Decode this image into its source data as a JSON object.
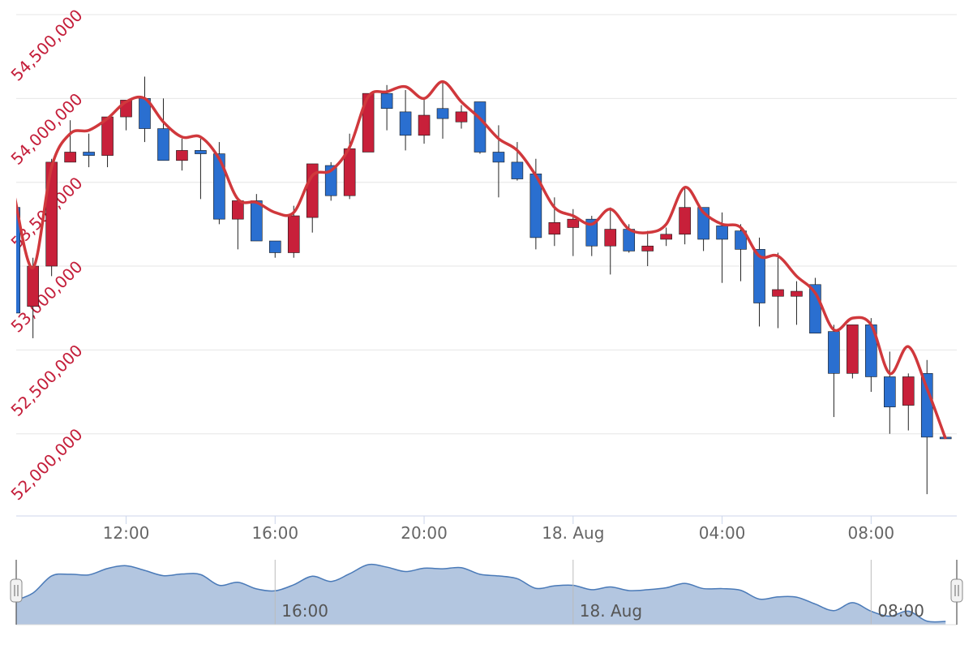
{
  "chart_data": {
    "type": "candlestick",
    "x": [
      9,
      9.5,
      10,
      10.5,
      11,
      11.5,
      12,
      12.5,
      13,
      13.5,
      14,
      14.5,
      15,
      15.5,
      16,
      16.5,
      17,
      17.5,
      18,
      18.5,
      19,
      19.5,
      20,
      20.5,
      21,
      21.5,
      22,
      22.5,
      23,
      23.5,
      24,
      24.5,
      25,
      25.5,
      26,
      26.5,
      27,
      27.5,
      28,
      28.5,
      29,
      29.5,
      30,
      30.5,
      31,
      31.5,
      32,
      32.5,
      33,
      33.5,
      34
    ],
    "xlim": [
      9.05,
      34.3
    ],
    "xticks": [
      {
        "value": 12,
        "label": "12:00"
      },
      {
        "value": 16,
        "label": "16:00"
      },
      {
        "value": 20,
        "label": "20:00"
      },
      {
        "value": 24,
        "label": "18. Aug"
      },
      {
        "value": 28,
        "label": "04:00"
      },
      {
        "value": 32,
        "label": "08:00"
      }
    ],
    "ylim": [
      51510000,
      54500000
    ],
    "yticks": [
      {
        "value": 52000000,
        "label": "52,000,000"
      },
      {
        "value": 52500000,
        "label": "52,500,000"
      },
      {
        "value": 53000000,
        "label": "53,000,000"
      },
      {
        "value": 53500000,
        "label": "53,500,000"
      },
      {
        "value": 54000000,
        "label": "54,000,000"
      },
      {
        "value": 54500000,
        "label": "54,500,000"
      }
    ],
    "grid": true,
    "series": [
      {
        "type": "candlestick",
        "up_color": "#c8203a",
        "down_color": "#2a6fd0",
        "open": [
          53350000,
          52760000,
          53000000,
          53620000,
          53680000,
          53660000,
          53890000,
          54000000,
          53820000,
          53630000,
          53690000,
          53670000,
          53280000,
          53390000,
          53150000,
          53080000,
          53290000,
          53600000,
          53420000,
          53680000,
          54030000,
          53920000,
          53780000,
          53940000,
          53860000,
          53980000,
          53680000,
          53620000,
          53550000,
          53190000,
          53230000,
          53280000,
          53120000,
          53220000,
          53090000,
          53160000,
          53190000,
          53350000,
          53240000,
          53210000,
          53100000,
          52820000,
          52820000,
          52890000,
          52610000,
          52360000,
          52650000,
          52340000,
          52170000,
          52360000,
          51980000
        ],
        "high": [
          53370000,
          53050000,
          53640000,
          53870000,
          53790000,
          53890000,
          53990000,
          54130000,
          54000000,
          53760000,
          53760000,
          53740000,
          53390000,
          53430000,
          53150000,
          53360000,
          53610000,
          53620000,
          53790000,
          54030000,
          54080000,
          54050000,
          54000000,
          54100000,
          53960000,
          53980000,
          53840000,
          53740000,
          53640000,
          53410000,
          53340000,
          53300000,
          53350000,
          53250000,
          53210000,
          53230000,
          53470000,
          53350000,
          53320000,
          53250000,
          53170000,
          53080000,
          52910000,
          52930000,
          52650000,
          52650000,
          52690000,
          52490000,
          52360000,
          52440000,
          51990000
        ],
        "low": [
          52690000,
          52570000,
          52940000,
          53620000,
          53590000,
          53590000,
          53810000,
          53740000,
          53630000,
          53570000,
          53400000,
          53250000,
          53100000,
          53150000,
          53050000,
          53050000,
          53200000,
          53390000,
          53400000,
          53680000,
          53810000,
          53690000,
          53730000,
          53760000,
          53820000,
          53670000,
          53410000,
          53510000,
          53100000,
          53120000,
          53060000,
          53060000,
          52950000,
          53080000,
          53000000,
          53120000,
          53130000,
          53090000,
          52900000,
          52910000,
          52640000,
          52630000,
          52650000,
          52600000,
          52100000,
          52330000,
          52250000,
          52000000,
          52020000,
          51640000,
          51970000
        ],
        "close": [
          52720000,
          53000000,
          53620000,
          53680000,
          53660000,
          53890000,
          53990000,
          53820000,
          53630000,
          53690000,
          53670000,
          53280000,
          53390000,
          53150000,
          53080000,
          53300000,
          53610000,
          53420000,
          53700000,
          54030000,
          53940000,
          53780000,
          53900000,
          53880000,
          53920000,
          53680000,
          53620000,
          53520000,
          53170000,
          53260000,
          53280000,
          53120000,
          53220000,
          53090000,
          53120000,
          53190000,
          53350000,
          53160000,
          53160000,
          53100000,
          52780000,
          52860000,
          52850000,
          52600000,
          52360000,
          52650000,
          52340000,
          52160000,
          52340000,
          51980000,
          51970000
        ]
      },
      {
        "type": "spline",
        "color": "#d0383c",
        "values": [
          53420000,
          52990000,
          53590000,
          53790000,
          53810000,
          53880000,
          53980000,
          54000000,
          53860000,
          53770000,
          53770000,
          53640000,
          53400000,
          53380000,
          53320000,
          53320000,
          53540000,
          53570000,
          53710000,
          54010000,
          54040000,
          54070000,
          54000000,
          54100000,
          53980000,
          53880000,
          53760000,
          53690000,
          53540000,
          53350000,
          53300000,
          53250000,
          53340000,
          53220000,
          53200000,
          53250000,
          53470000,
          53320000,
          53250000,
          53230000,
          53060000,
          53060000,
          52940000,
          52840000,
          52620000,
          52690000,
          52650000,
          52360000,
          52520000,
          52270000,
          51970000
        ]
      }
    ],
    "navigator": {
      "color": "#b3c6e0",
      "line_color": "#4a7ab8",
      "xticks": [
        {
          "value": 16,
          "label": "16:00"
        },
        {
          "value": 24,
          "label": "18. Aug"
        },
        {
          "value": 32,
          "label": "08:00"
        }
      ]
    }
  }
}
